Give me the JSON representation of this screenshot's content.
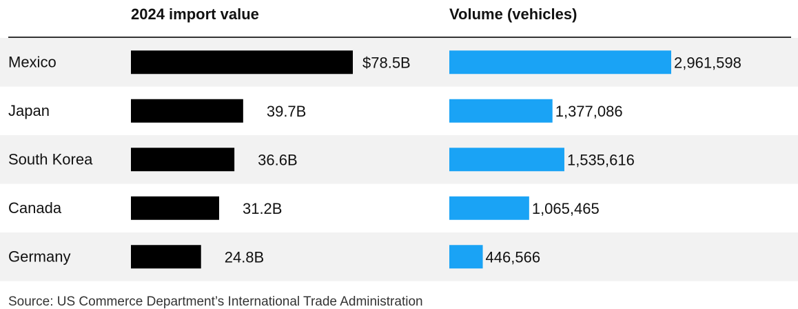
{
  "chart_data": {
    "type": "bar",
    "headers": {
      "value": "2024 import value",
      "volume": "Volume (vehicles)"
    },
    "categories": [
      "Mexico",
      "Japan",
      "South Korea",
      "Canada",
      "Germany"
    ],
    "series": [
      {
        "values": [
          78.5,
          39.7,
          36.6,
          31.2,
          24.8
        ],
        "labels": [
          "$78.5B",
          "39.7B",
          "36.6B",
          "31.2B",
          "24.8B"
        ],
        "color": "#000000"
      },
      {
        "values": [
          2961598,
          1377086,
          1535616,
          1065465,
          446566
        ],
        "labels": [
          "2,961,598",
          "1,377,086",
          "1,535,616",
          "1,065,465",
          "446,566"
        ],
        "color": "#1aa3f5"
      }
    ],
    "source": "Source: US Commerce Department’s International Trade Administration",
    "colors": {
      "stripe": "#f2f2f2",
      "rule": "#333333"
    }
  }
}
